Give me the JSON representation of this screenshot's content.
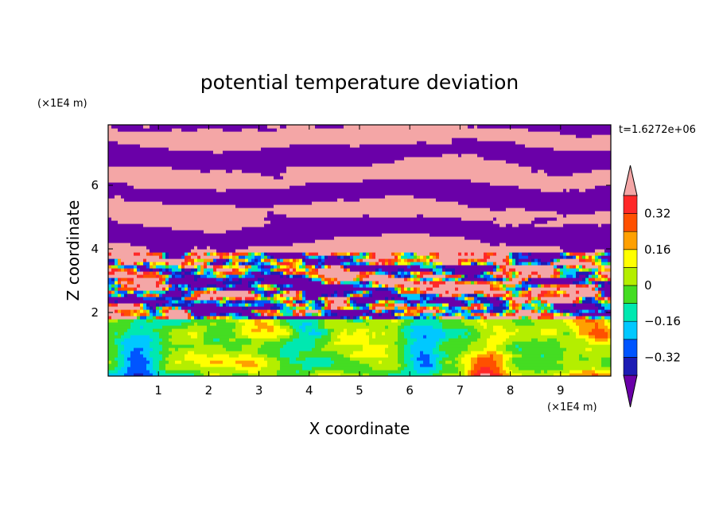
{
  "chart_data": {
    "type": "heatmap",
    "title": "potential temperature deviation",
    "xlabel": "X coordinate",
    "ylabel": "Z coordinate",
    "x_unit": "(×1E4 m)",
    "y_unit": "(×1E4 m)",
    "time_label": "t=1.6272e+06",
    "xlim": [
      0,
      10
    ],
    "ylim": [
      0,
      7.9
    ],
    "x_ticks": [
      1,
      2,
      3,
      4,
      5,
      6,
      7,
      8,
      9
    ],
    "y_ticks": [
      2,
      4,
      6
    ],
    "colorbar": {
      "levels": [
        -0.4,
        -0.32,
        -0.24,
        -0.16,
        -0.08,
        0,
        0.08,
        0.16,
        0.24,
        0.32,
        0.4
      ],
      "tick_labels": [
        "0.32",
        "0.16",
        "0",
        "−0.16",
        "−0.32"
      ],
      "tick_values": [
        0.32,
        0.16,
        0,
        -0.16,
        -0.32
      ],
      "colors": [
        "#6a00a8",
        "#1c1cb4",
        "#0055ff",
        "#00c8ff",
        "#00e8b0",
        "#44dd22",
        "#b4ee00",
        "#ffff00",
        "#ffa000",
        "#ff5000",
        "#ff2828",
        "#f4a6a6"
      ],
      "extend": "both"
    },
    "regions": [
      {
        "z_range": [
          0,
          1.7
        ],
        "description": "boundary layer: mixed cyan/green/yellow, red plumes near x=7.5 and x=9.5"
      },
      {
        "z_range": [
          1.7,
          3.8
        ],
        "description": "turbulent transition zone with full color range"
      },
      {
        "z_range": [
          3.8,
          7.9
        ],
        "description": "alternating layers of extreme values (purple and pink)"
      }
    ]
  }
}
